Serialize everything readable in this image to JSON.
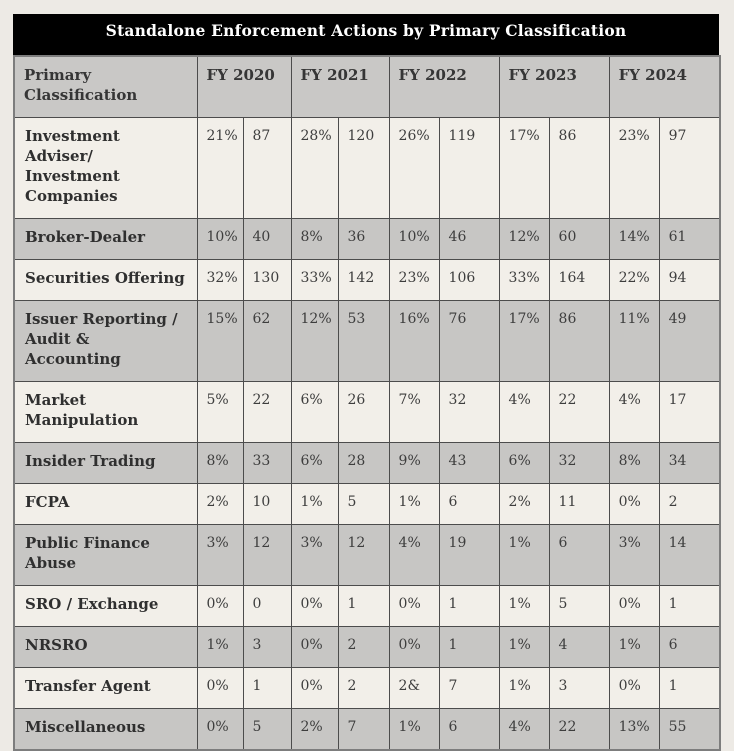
{
  "title": "Standalone Enforcement Actions by Primary Classification",
  "colors": {
    "title_bg": "#000000",
    "title_text": "#ffffff",
    "header_bg": "#c9c8c6",
    "row_light": "#f2efe9",
    "row_gray": "#c7c6c4",
    "page_bg": "#edeae5",
    "border": "#4c4c4c"
  },
  "table": {
    "header": {
      "classification_label": "Primary Classification",
      "years": [
        "FY 2020",
        "FY 2021",
        "FY 2022",
        "FY 2023",
        "FY 2024"
      ]
    },
    "rows": [
      {
        "label": "Investment Adviser/\nInvestment\nCompanies",
        "values": [
          "21%",
          "87",
          "28%",
          "120",
          "26%",
          "119",
          "17%",
          "86",
          "23%",
          "97"
        ]
      },
      {
        "label": "Broker-Dealer",
        "values": [
          "10%",
          "40",
          "8%",
          "36",
          "10%",
          "46",
          "12%",
          "60",
          "14%",
          "61"
        ]
      },
      {
        "label": "Securities Offering",
        "values": [
          "32%",
          "130",
          "33%",
          "142",
          "23%",
          "106",
          "33%",
          "164",
          "22%",
          "94"
        ]
      },
      {
        "label": "Issuer Reporting /\nAudit & Accounting",
        "values": [
          "15%",
          "62",
          "12%",
          "53",
          "16%",
          "76",
          "17%",
          "86",
          "11%",
          "49"
        ]
      },
      {
        "label": "Market Manipulation",
        "values": [
          "5%",
          "22",
          "6%",
          "26",
          "7%",
          "32",
          "4%",
          "22",
          "4%",
          "17"
        ]
      },
      {
        "label": "Insider Trading",
        "values": [
          "8%",
          "33",
          "6%",
          "28",
          "9%",
          "43",
          "6%",
          "32",
          "8%",
          "34"
        ]
      },
      {
        "label": "FCPA",
        "values": [
          "2%",
          "10",
          "1%",
          "5",
          "1%",
          "6",
          "2%",
          "11",
          "0%",
          "2"
        ]
      },
      {
        "label": "Public Finance Abuse",
        "values": [
          "3%",
          "12",
          "3%",
          "12",
          "4%",
          "19",
          "1%",
          "6",
          "3%",
          "14"
        ]
      },
      {
        "label": "SRO / Exchange",
        "values": [
          "0%",
          "0",
          "0%",
          "1",
          "0%",
          "1",
          "1%",
          "5",
          "0%",
          "1"
        ]
      },
      {
        "label": "NRSRO",
        "values": [
          "1%",
          "3",
          "0%",
          "2",
          "0%",
          "1",
          "1%",
          "4",
          "1%",
          "6"
        ]
      },
      {
        "label": "Transfer Agent",
        "values": [
          "0%",
          "1",
          "0%",
          "2",
          "2&",
          "7",
          "1%",
          "3",
          "0%",
          "1"
        ]
      },
      {
        "label": "Miscellaneous",
        "values": [
          "0%",
          "5",
          "2%",
          "7",
          "1%",
          "6",
          "4%",
          "22",
          "13%",
          "55"
        ]
      }
    ]
  }
}
